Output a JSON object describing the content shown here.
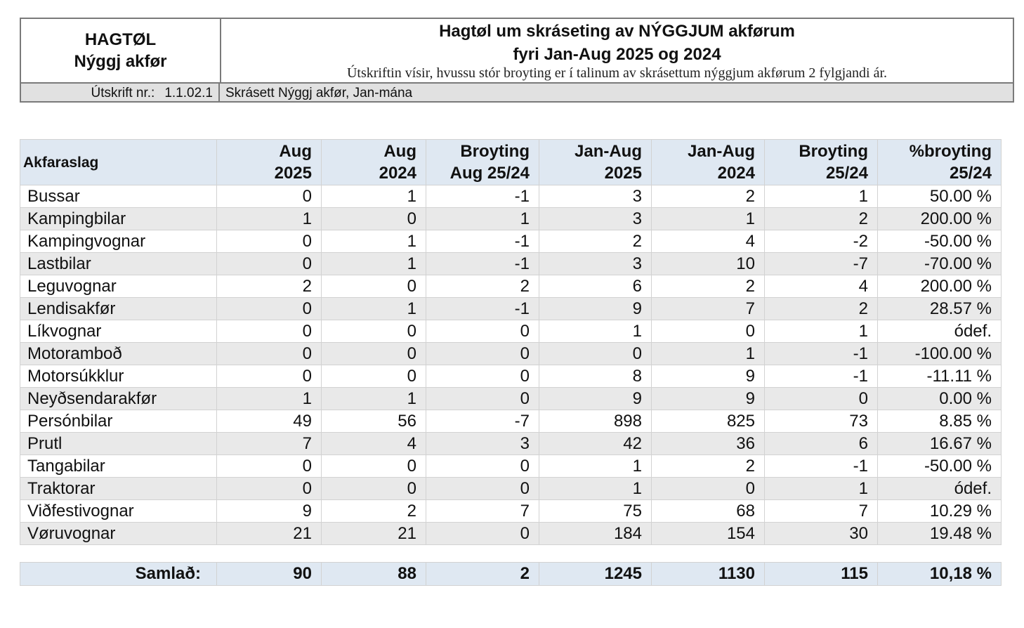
{
  "header": {
    "left_line1": "HAGTØL",
    "left_line2": "Nýggj akfør",
    "title_line1": "Hagtøl um skráseting av NÝGGJUM akførum",
    "title_line2": "fyri Jan-Aug 2025 og 2024",
    "description": "Útskriftin vísir, hvussu stór broyting er í talinum av skrásettum nýggjum akførum 2 fylgjandi ár.",
    "report_label": "Útskrift nr.:",
    "report_number": "1.1.02.1",
    "report_name": "Skrásett Nýggj akfør, Jan-mána"
  },
  "table": {
    "columns": [
      {
        "l1": "Akfaraslag",
        "l2": ""
      },
      {
        "l1": "Aug",
        "l2": "2025"
      },
      {
        "l1": "Aug",
        "l2": "2024"
      },
      {
        "l1": "Broyting",
        "l2": "Aug 25/24"
      },
      {
        "l1": "Jan-Aug",
        "l2": "2025"
      },
      {
        "l1": "Jan-Aug",
        "l2": "2024"
      },
      {
        "l1": "Broyting",
        "l2": "25/24"
      },
      {
        "l1": "%broyting",
        "l2": "25/24"
      }
    ],
    "rows": [
      [
        "Bussar",
        "0",
        "1",
        "-1",
        "3",
        "2",
        "1",
        "50.00 %"
      ],
      [
        "Kampingbilar",
        "1",
        "0",
        "1",
        "3",
        "1",
        "2",
        "200.00 %"
      ],
      [
        "Kampingvognar",
        "0",
        "1",
        "-1",
        "2",
        "4",
        "-2",
        "-50.00 %"
      ],
      [
        "Lastbilar",
        "0",
        "1",
        "-1",
        "3",
        "10",
        "-7",
        "-70.00 %"
      ],
      [
        "Leguvognar",
        "2",
        "0",
        "2",
        "6",
        "2",
        "4",
        "200.00 %"
      ],
      [
        "Lendisakfør",
        "0",
        "1",
        "-1",
        "9",
        "7",
        "2",
        "28.57 %"
      ],
      [
        "Líkvognar",
        "0",
        "0",
        "0",
        "1",
        "0",
        "1",
        "ódef."
      ],
      [
        "Motoramboð",
        "0",
        "0",
        "0",
        "0",
        "1",
        "-1",
        "-100.00 %"
      ],
      [
        "Motorsúkklur",
        "0",
        "0",
        "0",
        "8",
        "9",
        "-1",
        "-11.11 %"
      ],
      [
        "Neyðsendarakfør",
        "1",
        "1",
        "0",
        "9",
        "9",
        "0",
        "0.00 %"
      ],
      [
        "Persónbilar",
        "49",
        "56",
        "-7",
        "898",
        "825",
        "73",
        "8.85 %"
      ],
      [
        "Prutl",
        "7",
        "4",
        "3",
        "42",
        "36",
        "6",
        "16.67 %"
      ],
      [
        "Tangabilar",
        "0",
        "0",
        "0",
        "1",
        "2",
        "-1",
        "-50.00 %"
      ],
      [
        "Traktorar",
        "0",
        "0",
        "0",
        "1",
        "0",
        "1",
        "ódef."
      ],
      [
        "Viðfestivognar",
        "9",
        "2",
        "7",
        "75",
        "68",
        "7",
        "10.29 %"
      ],
      [
        "Vøruvognar",
        "21",
        "21",
        "0",
        "184",
        "154",
        "30",
        "19.48 %"
      ]
    ],
    "total": [
      "Samlað:",
      "90",
      "88",
      "2",
      "1245",
      "1130",
      "115",
      "10,18 %"
    ]
  }
}
